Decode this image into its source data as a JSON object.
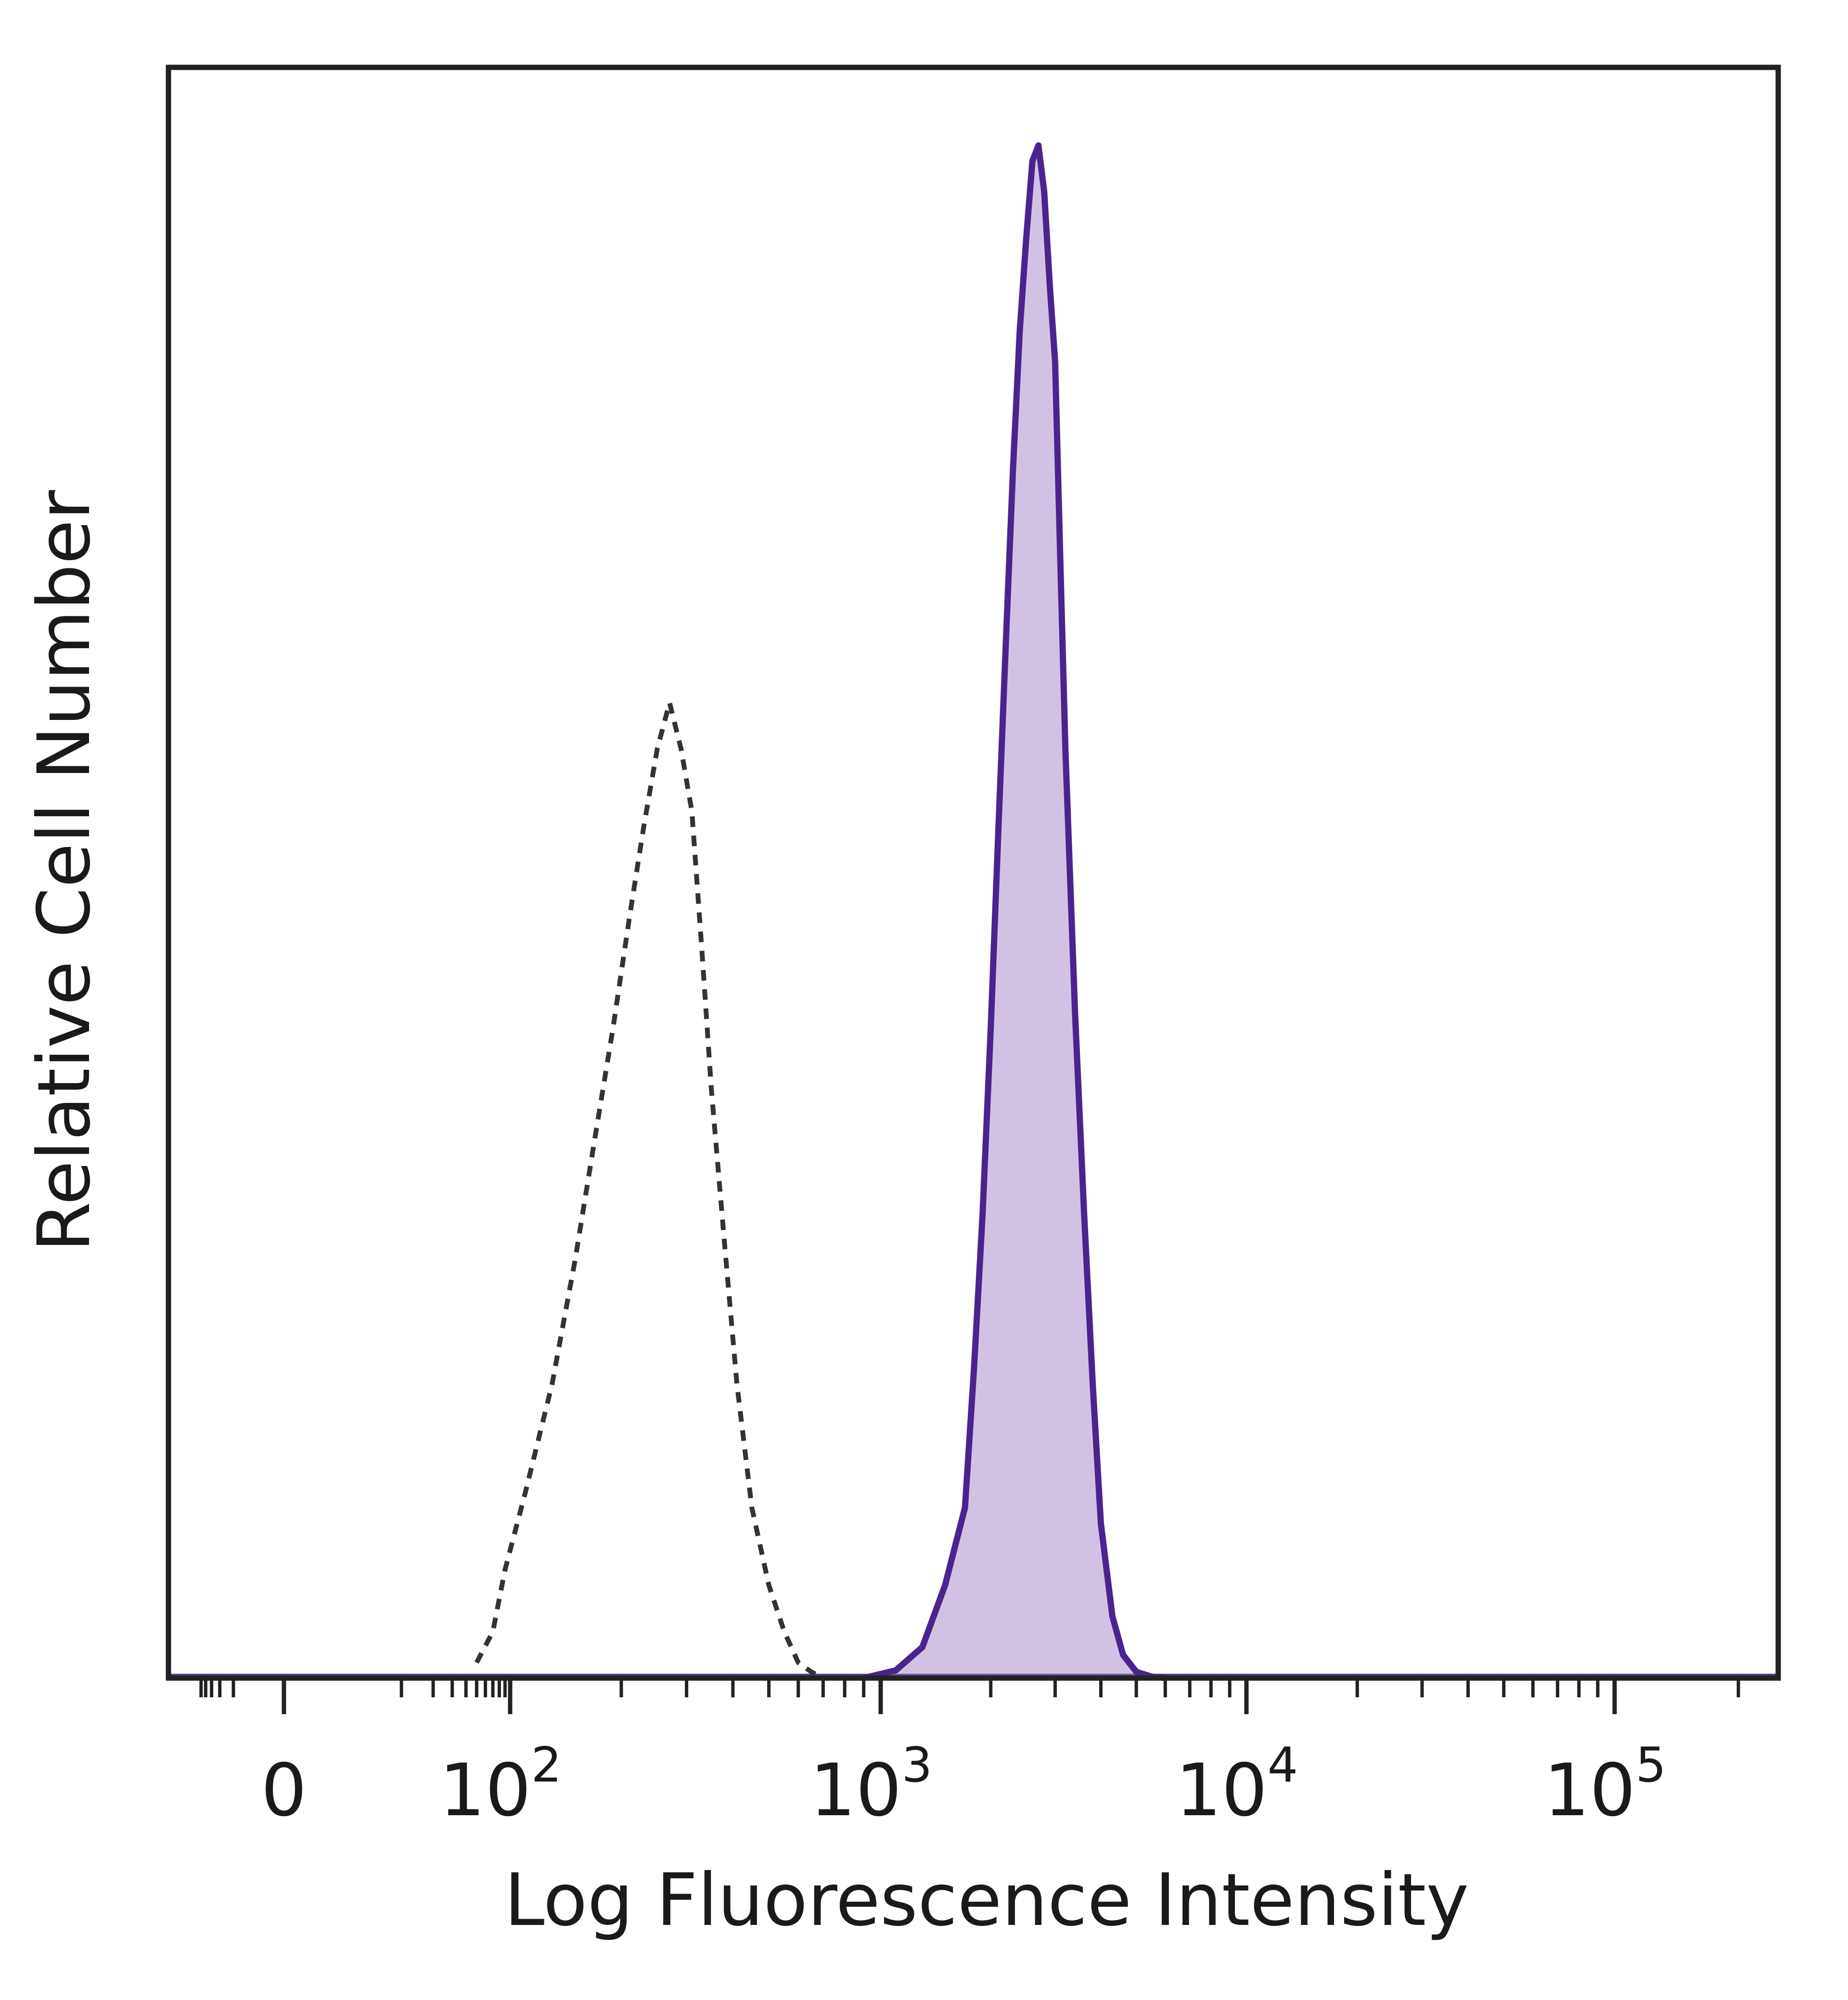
{
  "chart_data": {
    "type": "area",
    "title": "",
    "xlabel": "Log Fluorescence Intensity",
    "ylabel": "Relative Cell Number",
    "x_scale": "biexponential",
    "xlim": [
      -60,
      250000
    ],
    "ylim": [
      0,
      1.0
    ],
    "x_ticks": [
      {
        "value": 0,
        "base": "0",
        "exp": ""
      },
      {
        "value": 100,
        "base": "10",
        "exp": "2"
      },
      {
        "value": 1000,
        "base": "10",
        "exp": "3"
      },
      {
        "value": 10000,
        "base": "10",
        "exp": "4"
      },
      {
        "value": 100000,
        "base": "10",
        "exp": "5"
      }
    ],
    "grid": false,
    "legend": "none",
    "series": [
      {
        "style": "dotted-outline",
        "color": "#333333",
        "x": [
          50,
          70,
          90,
          110,
          130,
          150,
          170,
          190,
          210,
          230,
          250,
          270,
          290,
          310,
          330,
          350,
          380,
          410,
          450,
          500,
          550,
          600,
          650,
          700
        ],
        "y": [
          0.01,
          0.03,
          0.07,
          0.12,
          0.19,
          0.27,
          0.35,
          0.42,
          0.49,
          0.55,
          0.6,
          0.63,
          0.6,
          0.56,
          0.47,
          0.38,
          0.28,
          0.19,
          0.11,
          0.06,
          0.03,
          0.01,
          0.004,
          0.0
        ]
      },
      {
        "style": "filled",
        "color": "#4b2390",
        "fill": "#9a78c0",
        "x": [
          900,
          1100,
          1300,
          1500,
          1700,
          1800,
          1900,
          2000,
          2100,
          2200,
          2300,
          2400,
          2500,
          2600,
          2700,
          2800,
          2900,
          3000,
          3100,
          3200,
          3400,
          3600,
          3800,
          4000,
          4300,
          4600,
          5000,
          5500,
          6000
        ],
        "y": [
          0.0,
          0.005,
          0.02,
          0.06,
          0.11,
          0.2,
          0.3,
          0.42,
          0.55,
          0.67,
          0.78,
          0.87,
          0.93,
          0.98,
          0.99,
          0.96,
          0.9,
          0.85,
          0.72,
          0.6,
          0.43,
          0.3,
          0.19,
          0.1,
          0.04,
          0.015,
          0.004,
          0.001,
          0.0
        ]
      }
    ]
  }
}
